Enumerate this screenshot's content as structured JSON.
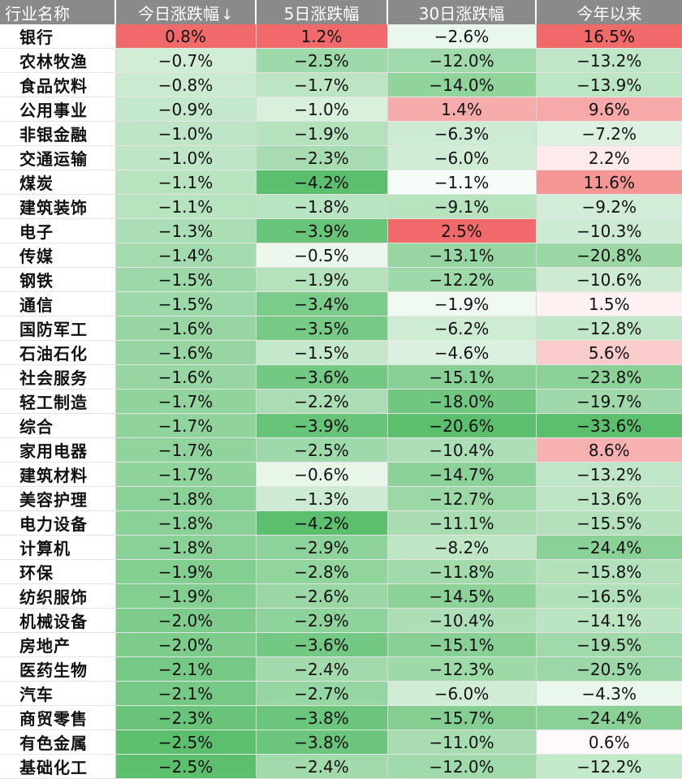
{
  "chart_data": {
    "type": "table",
    "columns": [
      "行业名称",
      "今日涨跌幅",
      "5日涨跌幅",
      "30日涨跌幅",
      "今年以来"
    ],
    "sorted_column": "今日涨跌幅",
    "sort_indicator": "↓",
    "rows": [
      [
        "银行",
        "0.8%",
        "1.2%",
        "−2.6%",
        "16.5%"
      ],
      [
        "农林牧渔",
        "−0.7%",
        "−2.5%",
        "−12.0%",
        "−13.2%"
      ],
      [
        "食品饮料",
        "−0.8%",
        "−1.7%",
        "−14.0%",
        "−13.9%"
      ],
      [
        "公用事业",
        "−0.9%",
        "−1.0%",
        "1.4%",
        "9.6%"
      ],
      [
        "非银金融",
        "−1.0%",
        "−1.9%",
        "−6.3%",
        "−7.2%"
      ],
      [
        "交通运输",
        "−1.0%",
        "−2.3%",
        "−6.0%",
        "2.2%"
      ],
      [
        "煤炭",
        "−1.1%",
        "−4.2%",
        "−1.1%",
        "11.6%"
      ],
      [
        "建筑装饰",
        "−1.1%",
        "−1.8%",
        "−9.1%",
        "−9.2%"
      ],
      [
        "电子",
        "−1.3%",
        "−3.9%",
        "2.5%",
        "−10.3%"
      ],
      [
        "传媒",
        "−1.4%",
        "−0.5%",
        "−13.1%",
        "−20.8%"
      ],
      [
        "钢铁",
        "−1.5%",
        "−1.9%",
        "−12.2%",
        "−10.6%"
      ],
      [
        "通信",
        "−1.5%",
        "−3.4%",
        "−1.9%",
        "1.5%"
      ],
      [
        "国防军工",
        "−1.6%",
        "−3.5%",
        "−6.2%",
        "−12.8%"
      ],
      [
        "石油石化",
        "−1.6%",
        "−1.5%",
        "−4.6%",
        "5.6%"
      ],
      [
        "社会服务",
        "−1.6%",
        "−3.6%",
        "−15.1%",
        "−23.8%"
      ],
      [
        "轻工制造",
        "−1.7%",
        "−2.2%",
        "−18.0%",
        "−19.7%"
      ],
      [
        "综合",
        "−1.7%",
        "−3.9%",
        "−20.6%",
        "−33.6%"
      ],
      [
        "家用电器",
        "−1.7%",
        "−2.5%",
        "−10.4%",
        "8.6%"
      ],
      [
        "建筑材料",
        "−1.7%",
        "−0.6%",
        "−14.7%",
        "−13.2%"
      ],
      [
        "美容护理",
        "−1.8%",
        "−1.3%",
        "−12.7%",
        "−13.6%"
      ],
      [
        "电力设备",
        "−1.8%",
        "−4.2%",
        "−11.1%",
        "−15.5%"
      ],
      [
        "计算机",
        "−1.8%",
        "−2.9%",
        "−8.2%",
        "−24.4%"
      ],
      [
        "环保",
        "−1.9%",
        "−2.8%",
        "−11.8%",
        "−15.8%"
      ],
      [
        "纺织服饰",
        "−1.9%",
        "−2.6%",
        "−14.5%",
        "−16.5%"
      ],
      [
        "机械设备",
        "−2.0%",
        "−2.9%",
        "−10.4%",
        "−14.1%"
      ],
      [
        "房地产",
        "−2.0%",
        "−3.6%",
        "−15.1%",
        "−19.5%"
      ],
      [
        "医药生物",
        "−2.1%",
        "−2.4%",
        "−12.3%",
        "−20.5%"
      ],
      [
        "汽车",
        "−2.1%",
        "−2.7%",
        "−6.0%",
        "−4.3%"
      ],
      [
        "商贸零售",
        "−2.3%",
        "−3.8%",
        "−15.7%",
        "−24.4%"
      ],
      [
        "有色金属",
        "−2.5%",
        "−3.8%",
        "−11.0%",
        "0.6%"
      ],
      [
        "基础化工",
        "−2.5%",
        "−2.4%",
        "−12.0%",
        "−12.2%"
      ]
    ],
    "color_scale": {
      "positive": "#f16a6a",
      "negative": "#5cbf6e",
      "neutral": "#ffffff",
      "header_bg": "#8a8a8a",
      "header_text": "#ffffff"
    }
  }
}
